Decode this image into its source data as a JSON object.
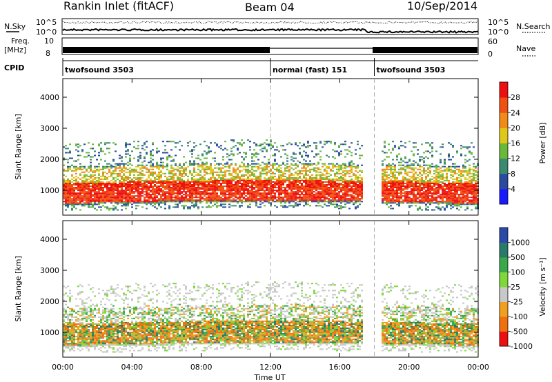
{
  "header": {
    "station": "Rankin Inlet (fitACF)",
    "beam": "Beam 04",
    "date": "10/Sep/2014"
  },
  "status_panels": {
    "nsky_label": "N.Sky",
    "nsearch_label": "N.Search",
    "freq_label_line1": "Freq.",
    "freq_label_line2": "[MHz]",
    "nave_label": "Nave",
    "cpid_label": "CPID",
    "noise_ticks_left": [
      "10^5",
      "10^0"
    ],
    "noise_ticks_right": [
      "10^5",
      "10^0"
    ],
    "freq_ticks": [
      "10",
      "8"
    ],
    "nave_ticks": [
      "60",
      "0"
    ],
    "cpid_segments": [
      {
        "label": "twofsound 3503",
        "start_hour": 0,
        "end_hour": 12
      },
      {
        "label": "normal (fast) 151",
        "start_hour": 12,
        "end_hour": 18
      },
      {
        "label": "twofsound 3503",
        "start_hour": 18,
        "end_hour": 24
      }
    ]
  },
  "chart_data": [
    {
      "type": "heatmap",
      "quantity": "Power",
      "ylabel": "Slant Range [km]",
      "ylim": [
        200,
        4600
      ],
      "yticks": [
        "1000",
        "2000",
        "3000",
        "4000"
      ],
      "xlim": [
        0,
        24
      ],
      "colorbar_label": "Power [dB]",
      "colorbar_ticks": [
        "4",
        "8",
        "12",
        "16",
        "20",
        "24",
        "28"
      ],
      "colorbar_range": [
        0,
        32
      ],
      "colorbar_colors": [
        "#1a1aff",
        "#2a4aa0",
        "#3a8a70",
        "#6ab83a",
        "#e0c81a",
        "#f08a18",
        "#f05010",
        "#ee1010"
      ],
      "scatter_bands": [
        {
          "range_km": [
            500,
            1200
          ],
          "value": "28"
        },
        {
          "range_km": [
            1200,
            1700
          ],
          "value": "16"
        },
        {
          "range_km": [
            1700,
            2600
          ],
          "value": "8"
        }
      ]
    },
    {
      "type": "heatmap",
      "quantity": "Velocity",
      "ylabel": "Slant Range [km]",
      "ylim": [
        200,
        4600
      ],
      "yticks": [
        "1000",
        "2000",
        "3000",
        "4000"
      ],
      "xlim": [
        0,
        24
      ],
      "colorbar_label": "Velocity [m s⁻¹]",
      "colorbar_ticks": [
        "1000",
        "500",
        "100",
        "25",
        "-25",
        "-100",
        "-500",
        "-1000"
      ],
      "colorbar_colors": [
        "#2a4aa8",
        "#2a7a6a",
        "#3aa84a",
        "#7ed83a",
        "#c8c8c8",
        "#f0a020",
        "#f07010",
        "#ee1010"
      ],
      "scatter_bands": [
        {
          "range_km": [
            500,
            1300
          ],
          "value": "-100"
        },
        {
          "range_km": [
            1300,
            1800
          ],
          "value": "25"
        },
        {
          "range_km": [
            1800,
            2600
          ],
          "value": "25"
        }
      ]
    }
  ],
  "x_axis": {
    "ticks": [
      "00:00",
      "04:00",
      "08:00",
      "12:00",
      "16:00",
      "20:00",
      "00:00"
    ],
    "label": "Time UT"
  }
}
